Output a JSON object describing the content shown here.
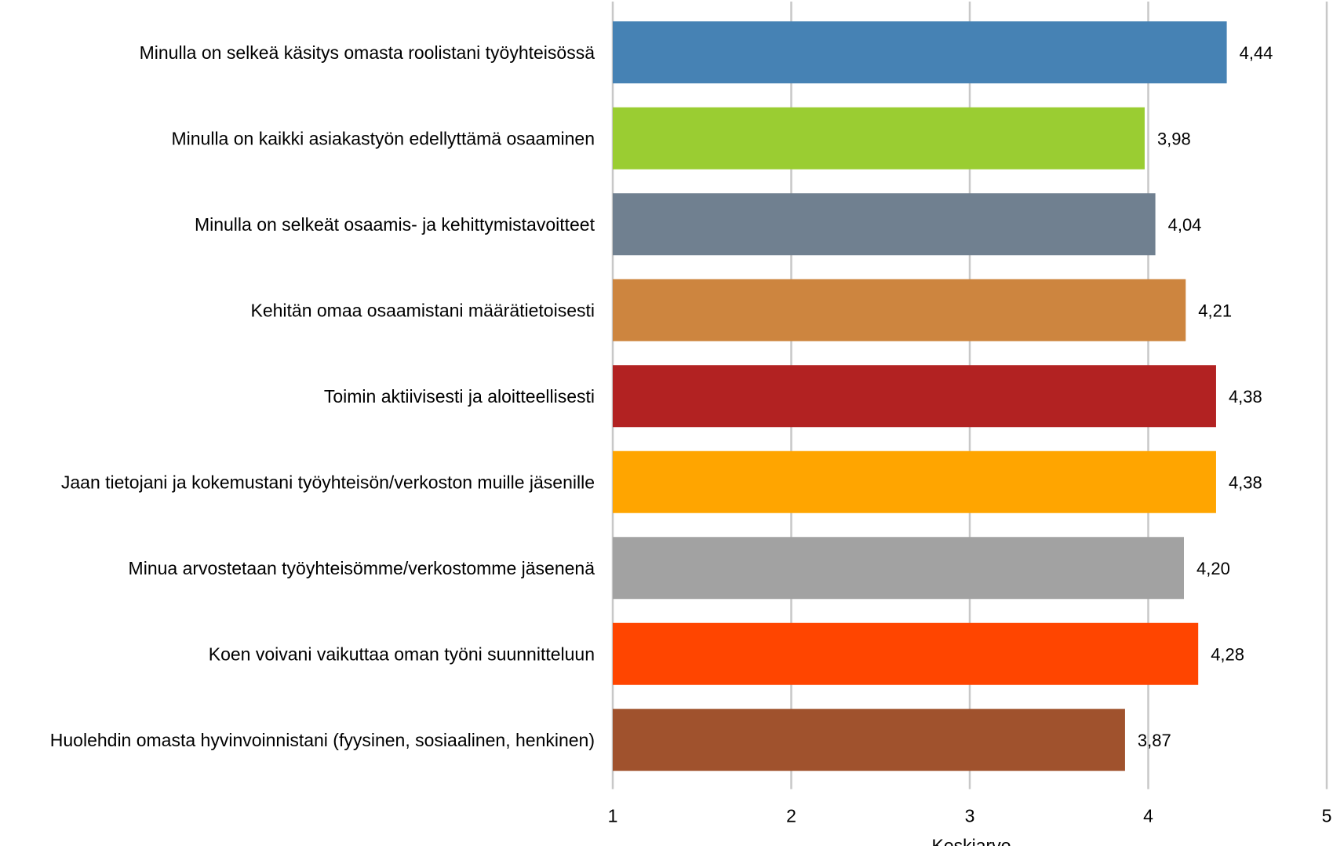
{
  "chart_data": {
    "type": "bar",
    "orientation": "horizontal",
    "categories": [
      "Minulla on selkeä käsitys omasta roolistani työyhteisössä",
      "Minulla on kaikki asiakastyön edellyttämä osaaminen",
      "Minulla on selkeät osaamis- ja kehittymistavoitteet",
      "Kehitän omaa osaamistani määrätietoisesti",
      "Toimin aktiivisesti ja aloitteellisesti",
      "Jaan tietojani ja kokemustani työyhteisön/verkoston muille jäsenille",
      "Minua arvostetaan työyhteisömme/verkostomme jäsenenä",
      "Koen voivani vaikuttaa oman työni suunnitteluun",
      "Huolehdin omasta hyvinvoinnistani (fyysinen, sosiaalinen, henkinen)"
    ],
    "values": [
      4.44,
      3.98,
      4.04,
      4.21,
      4.38,
      4.38,
      4.2,
      4.28,
      3.87
    ],
    "value_labels": [
      "4,44",
      "3,98",
      "4,04",
      "4,21",
      "4,38",
      "4,38",
      "4,20",
      "4,28",
      "3,87"
    ],
    "colors": [
      "#4682b4",
      "#9acd32",
      "#708090",
      "#cd853f",
      "#b22222",
      "#ffa500",
      "#a2a2a2",
      "#ff4500",
      "#a0522d"
    ],
    "xlim": [
      1,
      5
    ],
    "xticks": [
      "1",
      "2",
      "3",
      "4",
      "5"
    ],
    "xlabel": "Keskiarvo",
    "ylabel": "",
    "title": "",
    "grid": "vertical",
    "legend": "none"
  }
}
